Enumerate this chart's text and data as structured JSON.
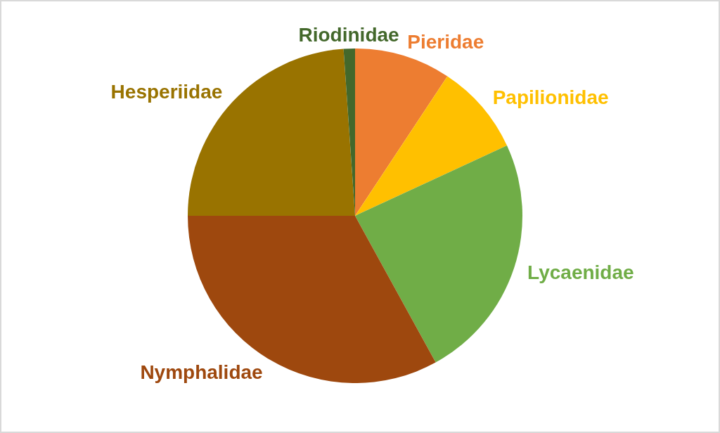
{
  "chart_data": {
    "type": "pie",
    "categories": [
      "Pieridae",
      "Papilionidae",
      "Lycaenidae",
      "Nymphalidae",
      "Hesperiidae",
      "Riodinidae"
    ],
    "values": [
      9.3,
      8.8,
      23.9,
      33.0,
      23.9,
      1.1
    ],
    "colors": [
      "#ed7d31",
      "#ffc000",
      "#70ad47",
      "#9e480e",
      "#997300",
      "#43682b"
    ]
  }
}
